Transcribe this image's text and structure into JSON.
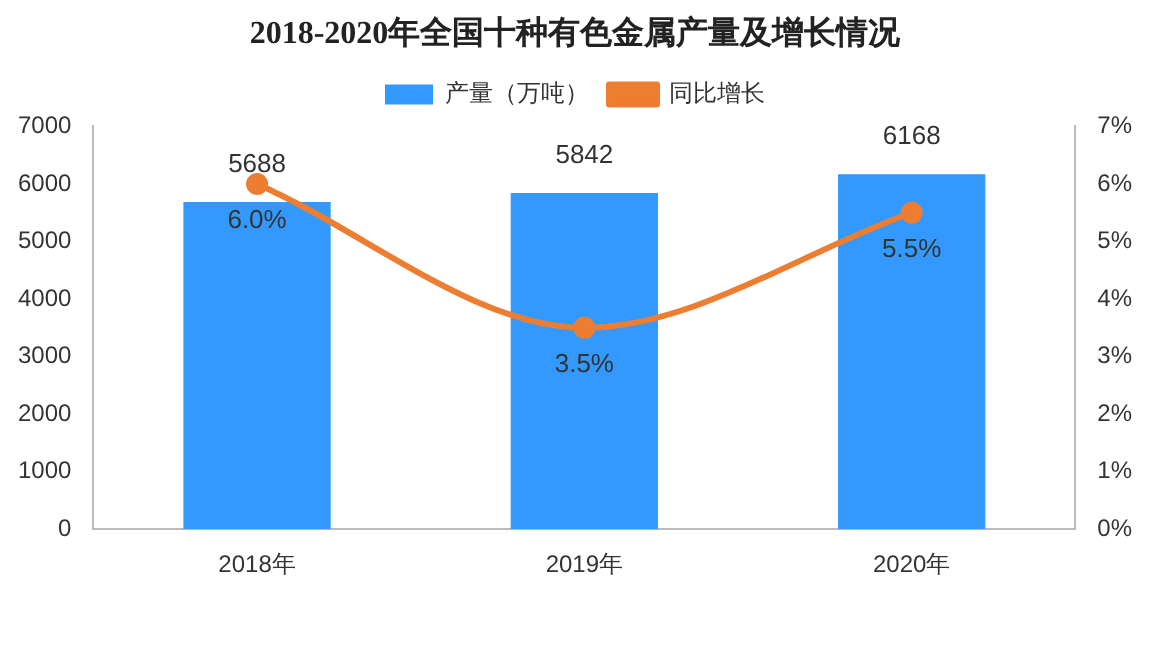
{
  "chart_data": {
    "type": "bar",
    "title": "2018-2020年全国十种有色金属产量及增长情况",
    "categories": [
      "2018年",
      "2019年",
      "2020年"
    ],
    "series": [
      {
        "name": "产量（万吨）",
        "color": "#3399ff",
        "values": [
          5688,
          5842,
          6168
        ],
        "value_labels": [
          "5688",
          "5842",
          "6168"
        ]
      },
      {
        "name": "同比增长",
        "type": "line",
        "axis": "y2",
        "color": "#ed7d31",
        "values": [
          6.0,
          3.5,
          5.5
        ],
        "value_labels": [
          "6.0%",
          "3.5%",
          "5.5%"
        ]
      }
    ],
    "ylim": [
      0,
      7000
    ],
    "yticks": [
      0,
      1000,
      2000,
      3000,
      4000,
      5000,
      6000,
      7000
    ],
    "y2lim": [
      0,
      7
    ],
    "y2ticks": [
      {
        "value": 0,
        "label": "0%"
      },
      {
        "value": 1,
        "label": "1%"
      },
      {
        "value": 2,
        "label": "2%"
      },
      {
        "value": 3,
        "label": "3%"
      },
      {
        "value": 4,
        "label": "4%"
      },
      {
        "value": 5,
        "label": "5%"
      },
      {
        "value": 6,
        "label": "6%"
      },
      {
        "value": 7,
        "label": "7%"
      }
    ],
    "legend": "top",
    "grid": false,
    "marker": "circle",
    "line_style": "solid"
  }
}
